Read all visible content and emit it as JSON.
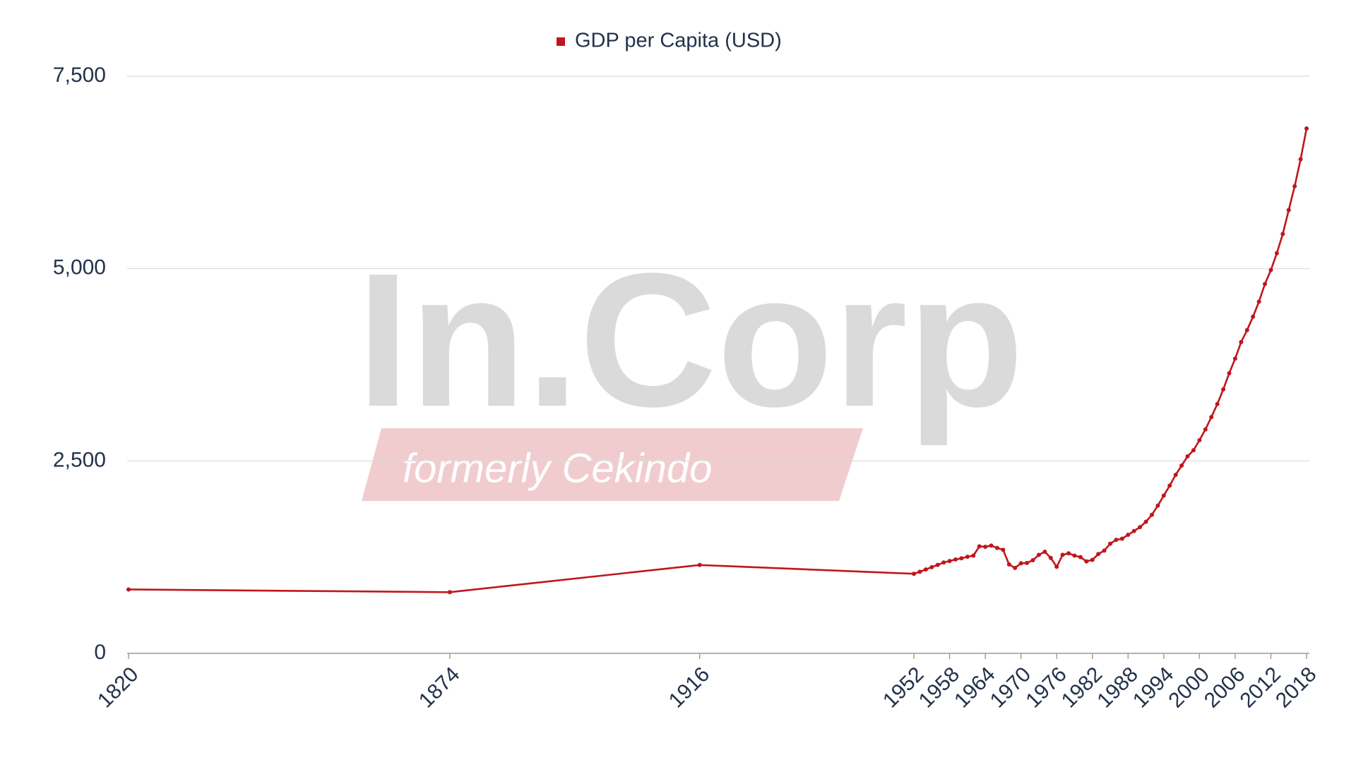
{
  "chart_data": {
    "type": "line",
    "legend_position": "top",
    "grid": true,
    "watermark": {
      "title": "In.Corp",
      "subtitle": "formerly Cekindo"
    },
    "x": [
      1820,
      1874,
      1916,
      1952,
      1953,
      1954,
      1955,
      1956,
      1957,
      1958,
      1959,
      1960,
      1961,
      1962,
      1963,
      1964,
      1965,
      1966,
      1967,
      1968,
      1969,
      1970,
      1971,
      1972,
      1973,
      1974,
      1975,
      1976,
      1977,
      1978,
      1979,
      1980,
      1981,
      1982,
      1983,
      1984,
      1985,
      1986,
      1987,
      1988,
      1989,
      1990,
      1991,
      1992,
      1993,
      1994,
      1995,
      1996,
      1997,
      1998,
      1999,
      2000,
      2001,
      2002,
      2003,
      2004,
      2005,
      2006,
      2007,
      2008,
      2009,
      2010,
      2011,
      2012,
      2013,
      2014,
      2015,
      2016,
      2017,
      2018
    ],
    "series": [
      {
        "name": "GDP per Capita (USD)",
        "color": "#c0161c",
        "values": [
          830,
          795,
          1148,
          1034,
          1060,
          1090,
          1120,
          1150,
          1180,
          1200,
          1220,
          1235,
          1255,
          1270,
          1390,
          1385,
          1400,
          1370,
          1345,
          1155,
          1110,
          1170,
          1175,
          1210,
          1280,
          1320,
          1240,
          1125,
          1280,
          1300,
          1270,
          1250,
          1195,
          1215,
          1290,
          1335,
          1425,
          1475,
          1490,
          1540,
          1590,
          1640,
          1710,
          1800,
          1920,
          2050,
          2180,
          2320,
          2440,
          2560,
          2640,
          2770,
          2910,
          3070,
          3240,
          3430,
          3640,
          3830,
          4045,
          4200,
          4375,
          4570,
          4800,
          4980,
          5200,
          5450,
          5760,
          6070,
          6420,
          6820
        ]
      }
    ],
    "xlim": [
      1820,
      2018
    ],
    "xticks": [
      1820,
      1874,
      1916,
      1952,
      1958,
      1964,
      1970,
      1976,
      1982,
      1988,
      1994,
      2000,
      2006,
      2012,
      2018
    ],
    "ylim": [
      0,
      7500
    ],
    "yticks": [
      0,
      {
        "value": 2500,
        "label": "2,500"
      },
      {
        "value": 5000,
        "label": "5,000"
      },
      {
        "value": 7500,
        "label": "7,500"
      }
    ]
  }
}
